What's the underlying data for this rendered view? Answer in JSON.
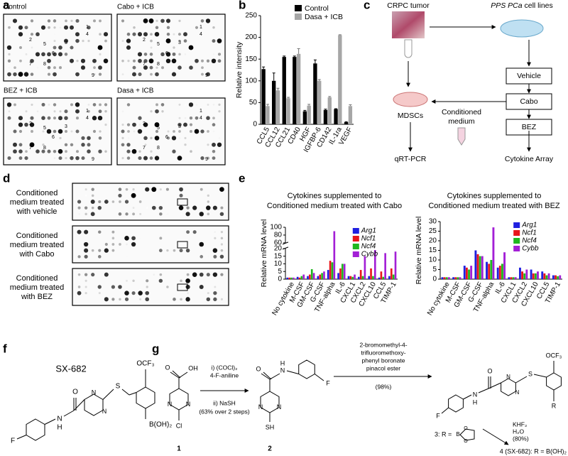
{
  "letters": [
    "a",
    "b",
    "c",
    "d",
    "e",
    "f",
    "g"
  ],
  "panel_a": {
    "blots": [
      {
        "label": "Control",
        "spots": [
          "1",
          "2",
          "3",
          "4",
          "5",
          "6",
          "7",
          "8",
          "9"
        ]
      },
      {
        "label": "Cabo + ICB",
        "spots": [
          "1",
          "2",
          "3",
          "4",
          "5",
          "6",
          "7",
          "8",
          "9"
        ]
      },
      {
        "label": "BEZ + ICB",
        "spots": [
          "1",
          "2",
          "3",
          "4",
          "5",
          "6",
          "7",
          "8",
          "9"
        ]
      },
      {
        "label": "Dasa + ICB",
        "spots": [
          "1",
          "2",
          "3",
          "4",
          "5",
          "6",
          "7",
          "8",
          "9"
        ]
      }
    ]
  },
  "chart_data": [
    {
      "type": "bar",
      "ylabel": "Relative intensity",
      "categories": [
        "CCL5",
        "CCL12",
        "CCL21",
        "CD40",
        "HGF",
        "IGFBP-6",
        "CD142",
        "IL-1ra",
        "VEGF"
      ],
      "series": [
        {
          "name": "Control",
          "color": "#000000",
          "values": [
            127,
            100,
            155,
            155,
            30,
            140,
            33,
            35,
            5
          ],
          "errors": [
            5,
            18,
            2,
            2,
            2,
            8,
            2,
            1,
            1
          ]
        },
        {
          "name": "Dasa + ICB",
          "color": "#a6a6a6",
          "values": [
            42,
            78,
            60,
            162,
            43,
            100,
            62,
            205,
            42
          ],
          "errors": [
            4,
            5,
            2,
            12,
            3,
            3,
            2,
            1,
            3
          ]
        }
      ],
      "ylim": [
        0,
        250
      ],
      "yticks": [
        0,
        50,
        100,
        150,
        200,
        250
      ],
      "legend": "top"
    },
    {
      "type": "bar",
      "title": [
        "Cytokines supplemented to",
        "Conditioned medium treated with Cabo"
      ],
      "ylabel": "Relative mRNA level",
      "categories": [
        "No cytokine",
        "M-CSF",
        "GM-CSF",
        "G-CSF",
        "TNF-alpha",
        "IL-6",
        "CXCL1",
        "CXCL2",
        "CXCL10",
        "CCL5",
        "TIMP-1"
      ],
      "series": [
        {
          "name": "Arg1",
          "color": "#1f1fe0",
          "values": [
            1,
            1.5,
            2,
            2,
            6,
            4,
            2,
            1.5,
            2,
            1,
            2
          ]
        },
        {
          "name": "Ncf1",
          "color": "#e8161b",
          "values": [
            1,
            1,
            3,
            3,
            12,
            7,
            2,
            6,
            7,
            5,
            7
          ]
        },
        {
          "name": "Ncf4",
          "color": "#1fb81f",
          "values": [
            1,
            2,
            6.5,
            4,
            11,
            10,
            1.5,
            2,
            2,
            1.5,
            3
          ]
        },
        {
          "name": "Cybb",
          "color": "#a31fd6",
          "values": [
            1,
            3,
            4,
            5,
            90,
            10,
            3,
            15,
            19,
            17,
            18
          ]
        }
      ],
      "ylim": [
        0,
        100
      ],
      "axis_break": [
        20,
        60
      ],
      "yticks": [
        0,
        5,
        10,
        15,
        20,
        60,
        80,
        100
      ],
      "legend": "top right"
    },
    {
      "type": "bar",
      "title": [
        "Cytokines supplemented to",
        "Conditioned medium treated with BEZ"
      ],
      "ylabel": "Relative mRNA level",
      "categories": [
        "No cytokine",
        "M-CSF",
        "GM-CSF",
        "G-CSF",
        "TNF-alpha",
        "IL-6",
        "CXCL1",
        "CXCL2",
        "CXCL10",
        "CCL5",
        "TIMP-1"
      ],
      "series": [
        {
          "name": "Arg1",
          "color": "#1f1fe0",
          "values": [
            1,
            1,
            7,
            15,
            9,
            6,
            1,
            6,
            5,
            4,
            2
          ]
        },
        {
          "name": "Ncf1",
          "color": "#e8161b",
          "values": [
            1,
            1,
            6,
            13,
            8,
            7,
            1,
            4,
            3,
            3,
            2
          ]
        },
        {
          "name": "Ncf4",
          "color": "#1fb81f",
          "values": [
            1,
            1,
            5,
            12,
            10,
            8,
            1,
            3,
            3,
            2,
            1.5
          ]
        },
        {
          "name": "Cybb",
          "color": "#a31fd6",
          "values": [
            1,
            1,
            7,
            12,
            27,
            14,
            1,
            5,
            4,
            3,
            2
          ]
        }
      ],
      "ylim": [
        0,
        30
      ],
      "yticks": [
        0,
        5,
        10,
        15,
        20,
        25,
        30
      ],
      "legend": "top right"
    }
  ],
  "panel_c": {
    "tumor": "CRPC tumor",
    "cells": [
      "PPS PCa",
      "cell lines"
    ],
    "treatments": [
      "Vehicle",
      "Cabo",
      "BEZ"
    ],
    "mdsc": "MDSCs",
    "medium": [
      "Conditioned",
      "medium"
    ],
    "qpcr": "qRT-PCR",
    "array": "Cytokine Array"
  },
  "panel_d": {
    "blots": [
      [
        "Conditioned",
        "medium treated",
        "with vehicle"
      ],
      [
        "Conditioned",
        "medium treated",
        "with Cabo"
      ],
      [
        "Conditioned",
        "medium treated",
        "with BEZ"
      ]
    ]
  },
  "panel_f": {
    "name": "SX-682",
    "atoms": [
      "F",
      "N",
      "H",
      "O",
      "N",
      "N",
      "S",
      "OCF₃",
      "B(OH)₂"
    ]
  },
  "panel_g": {
    "compounds": [
      {
        "label": "1",
        "atoms": [
          "O",
          "OH",
          "N",
          "N",
          "Cl"
        ]
      },
      {
        "label": "2",
        "atoms": [
          "O",
          "N",
          "H",
          "F",
          "N",
          "N",
          "SH"
        ]
      },
      {
        "atoms": [
          "F",
          "N",
          "H",
          "O",
          "N",
          "N",
          "S",
          "OCF₃",
          "R"
        ]
      }
    ],
    "step1": [
      "i) (COCl)₂",
      "4-F-aniline",
      "ii) NaSH",
      "(63% over 2 steps)"
    ],
    "step2": [
      "2-bromomethyl-4-",
      "trifluoromethoxy-",
      "phenyl boronate",
      "pinacol ester",
      "(98%)"
    ],
    "step3": [
      "KHF₂",
      "H₂O",
      "(80%)"
    ],
    "r3": "3: R =",
    "r3_atoms": [
      "B",
      "O",
      "O"
    ],
    "r4": "4 (SX-682): R = B(OH)₂"
  }
}
